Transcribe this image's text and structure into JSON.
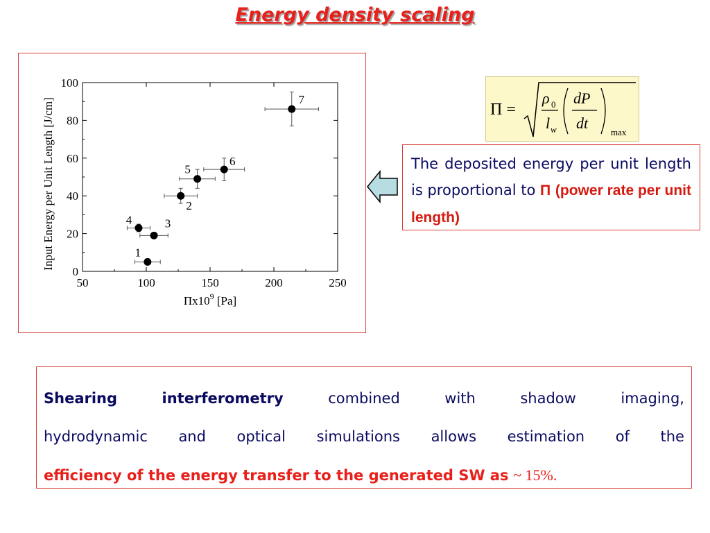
{
  "slide": {
    "title": "Energy density scaling"
  },
  "chart_data": {
    "type": "scatter",
    "xlabel": "Πx10",
    "xlabel_exp": "9",
    "xlabel_unit": "[Pa]",
    "ylabel": "Input Energy per Unit Length [J/cm]",
    "xlim": [
      50,
      250
    ],
    "ylim": [
      0,
      100
    ],
    "xticks": [
      "50",
      "100",
      "150",
      "200",
      "250"
    ],
    "yticks": [
      "0",
      "20",
      "40",
      "60",
      "80",
      "100"
    ],
    "grid": false,
    "points": [
      {
        "label": "1",
        "x": 101,
        "y": 5,
        "xerr": 10,
        "yerr": 0
      },
      {
        "label": "2",
        "x": 127,
        "y": 40,
        "xerr": 13,
        "yerr": 4
      },
      {
        "label": "3",
        "x": 106,
        "y": 19,
        "xerr": 11,
        "yerr": 0
      },
      {
        "label": "4",
        "x": 94,
        "y": 23,
        "xerr": 9,
        "yerr": 2
      },
      {
        "label": "5",
        "x": 140,
        "y": 49,
        "xerr": 14,
        "yerr": 5
      },
      {
        "label": "6",
        "x": 161,
        "y": 54,
        "xerr": 16,
        "yerr": 6
      },
      {
        "label": "7",
        "x": 214,
        "y": 86,
        "xerr": 21,
        "yerr": 9
      }
    ]
  },
  "formula": {
    "lhs": "Π =",
    "rho": "ρ",
    "rho_sub": "0",
    "l": "l",
    "l_sub": "w",
    "dP": "dP",
    "dt": "dt",
    "max": "max"
  },
  "description": {
    "text": "The deposited energy per unit length is proportional to ",
    "pi": "Π",
    "highlight": "(power rate per unit length)"
  },
  "conclusion": {
    "w1": "Shearing",
    "w2": "interferometry",
    "w3": "combined",
    "w4": "with",
    "w5": "shadow",
    "w6": "imaging,",
    "line2": [
      "hydrodynamic",
      "and",
      "optical",
      "simulations",
      "allows",
      "estimation",
      "of",
      "the"
    ],
    "line3_bold": "efficiency of the energy transfer to the generated SW as",
    "line3_value": "~ 15%."
  },
  "colors": {
    "title": "#e8201b",
    "text": "#0a0a60",
    "highlight": "#d51a10",
    "border": "#d9413a",
    "formula_bg": "#fcf8c9",
    "arrow_fill": "#b7dde3"
  }
}
